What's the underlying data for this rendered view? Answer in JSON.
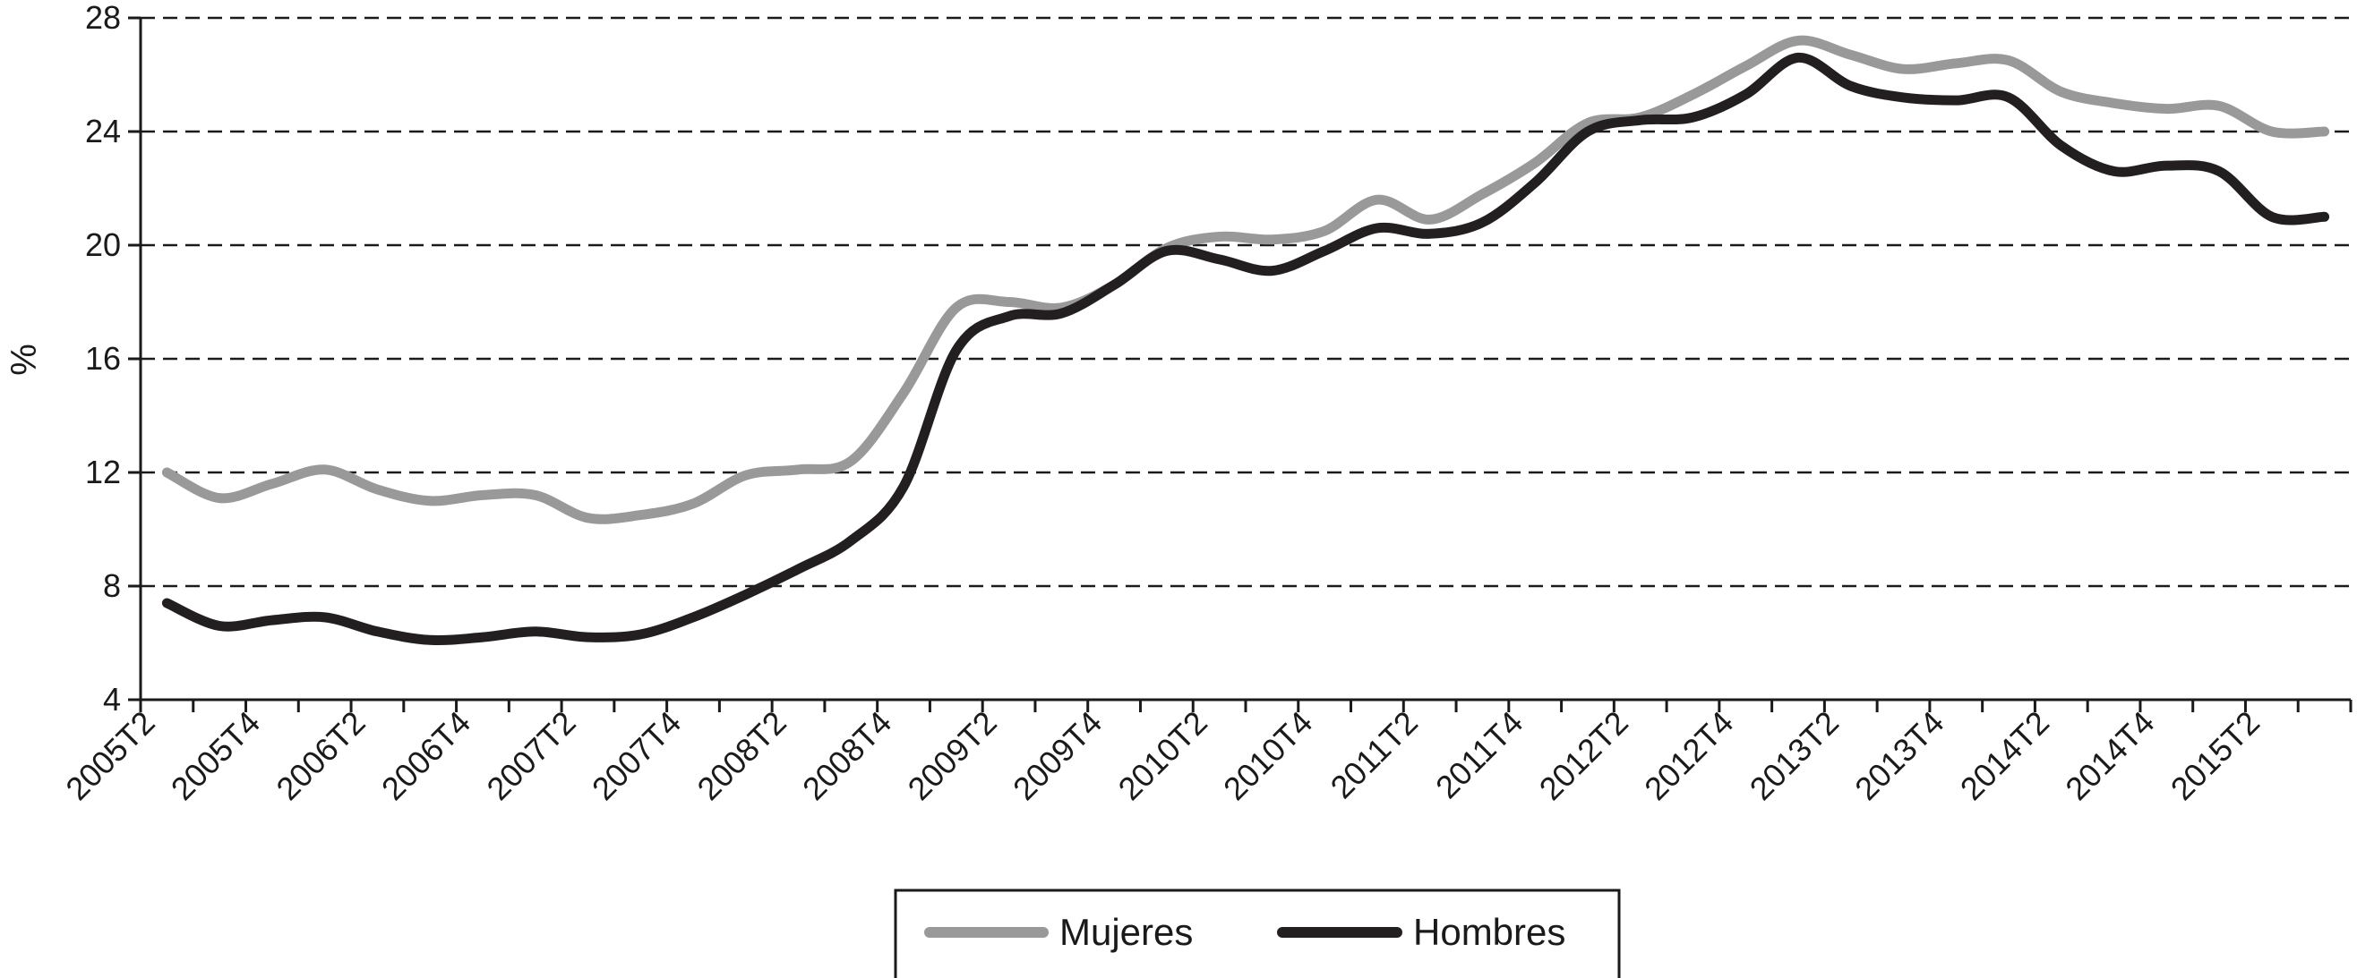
{
  "chart_data": {
    "type": "line",
    "title": "",
    "xlabel": "",
    "ylabel": "%",
    "ylim": [
      4,
      28
    ],
    "yticks": [
      "4",
      "8",
      "12",
      "16",
      "20",
      "24",
      "28"
    ],
    "grid": "horizontal dashed",
    "legend_position": "bottom",
    "x_tick_labels": [
      "2005T2",
      "2005T4",
      "2006T2",
      "2006T4",
      "2007T2",
      "2007T4",
      "2008T2",
      "2008T4",
      "2009T2",
      "2009T4",
      "2010T2",
      "2010T4",
      "2011T2",
      "2011T4",
      "2012T2",
      "2012T4",
      "2013T2",
      "2013T4",
      "2014T2",
      "2014T4",
      "2015T2"
    ],
    "x": [
      "2005T2",
      "2005T3",
      "2005T4",
      "2006T1",
      "2006T2",
      "2006T3",
      "2006T4",
      "2007T1",
      "2007T2",
      "2007T3",
      "2007T4",
      "2008T1",
      "2008T2",
      "2008T3",
      "2008T4",
      "2009T1",
      "2009T2",
      "2009T3",
      "2009T4",
      "2010T1",
      "2010T2",
      "2010T3",
      "2010T4",
      "2011T1",
      "2011T2",
      "2011T3",
      "2011T4",
      "2012T1",
      "2012T2",
      "2012T3",
      "2012T4",
      "2013T1",
      "2013T2",
      "2013T3",
      "2013T4",
      "2014T1",
      "2014T2",
      "2014T3",
      "2014T4",
      "2015T1",
      "2015T2",
      "2015T3"
    ],
    "series": [
      {
        "name": "Mujeres",
        "color": "#999999",
        "values": [
          12.0,
          11.1,
          11.6,
          12.1,
          11.4,
          11.0,
          11.2,
          11.2,
          10.4,
          10.5,
          10.9,
          11.9,
          12.1,
          12.4,
          14.8,
          17.8,
          18.0,
          17.8,
          18.6,
          19.9,
          20.3,
          20.2,
          20.5,
          21.6,
          20.9,
          21.8,
          22.9,
          24.3,
          24.5,
          25.3,
          26.3,
          27.2,
          26.7,
          26.2,
          26.4,
          26.5,
          25.4,
          25.0,
          24.8,
          24.9,
          24.0,
          24.0
        ],
        "legend_label": "Mujeres"
      },
      {
        "name": "Hombres",
        "color": "#231f20",
        "values": [
          7.4,
          6.6,
          6.8,
          6.9,
          6.4,
          6.1,
          6.2,
          6.4,
          6.2,
          6.3,
          6.9,
          7.7,
          8.6,
          9.6,
          11.5,
          16.3,
          17.5,
          17.6,
          18.6,
          19.8,
          19.5,
          19.1,
          19.8,
          20.6,
          20.4,
          20.8,
          22.2,
          24.0,
          24.4,
          24.5,
          25.3,
          26.6,
          25.6,
          25.2,
          25.1,
          25.2,
          23.5,
          22.6,
          22.8,
          22.6,
          21.0,
          21.0
        ]
      }
    ]
  }
}
